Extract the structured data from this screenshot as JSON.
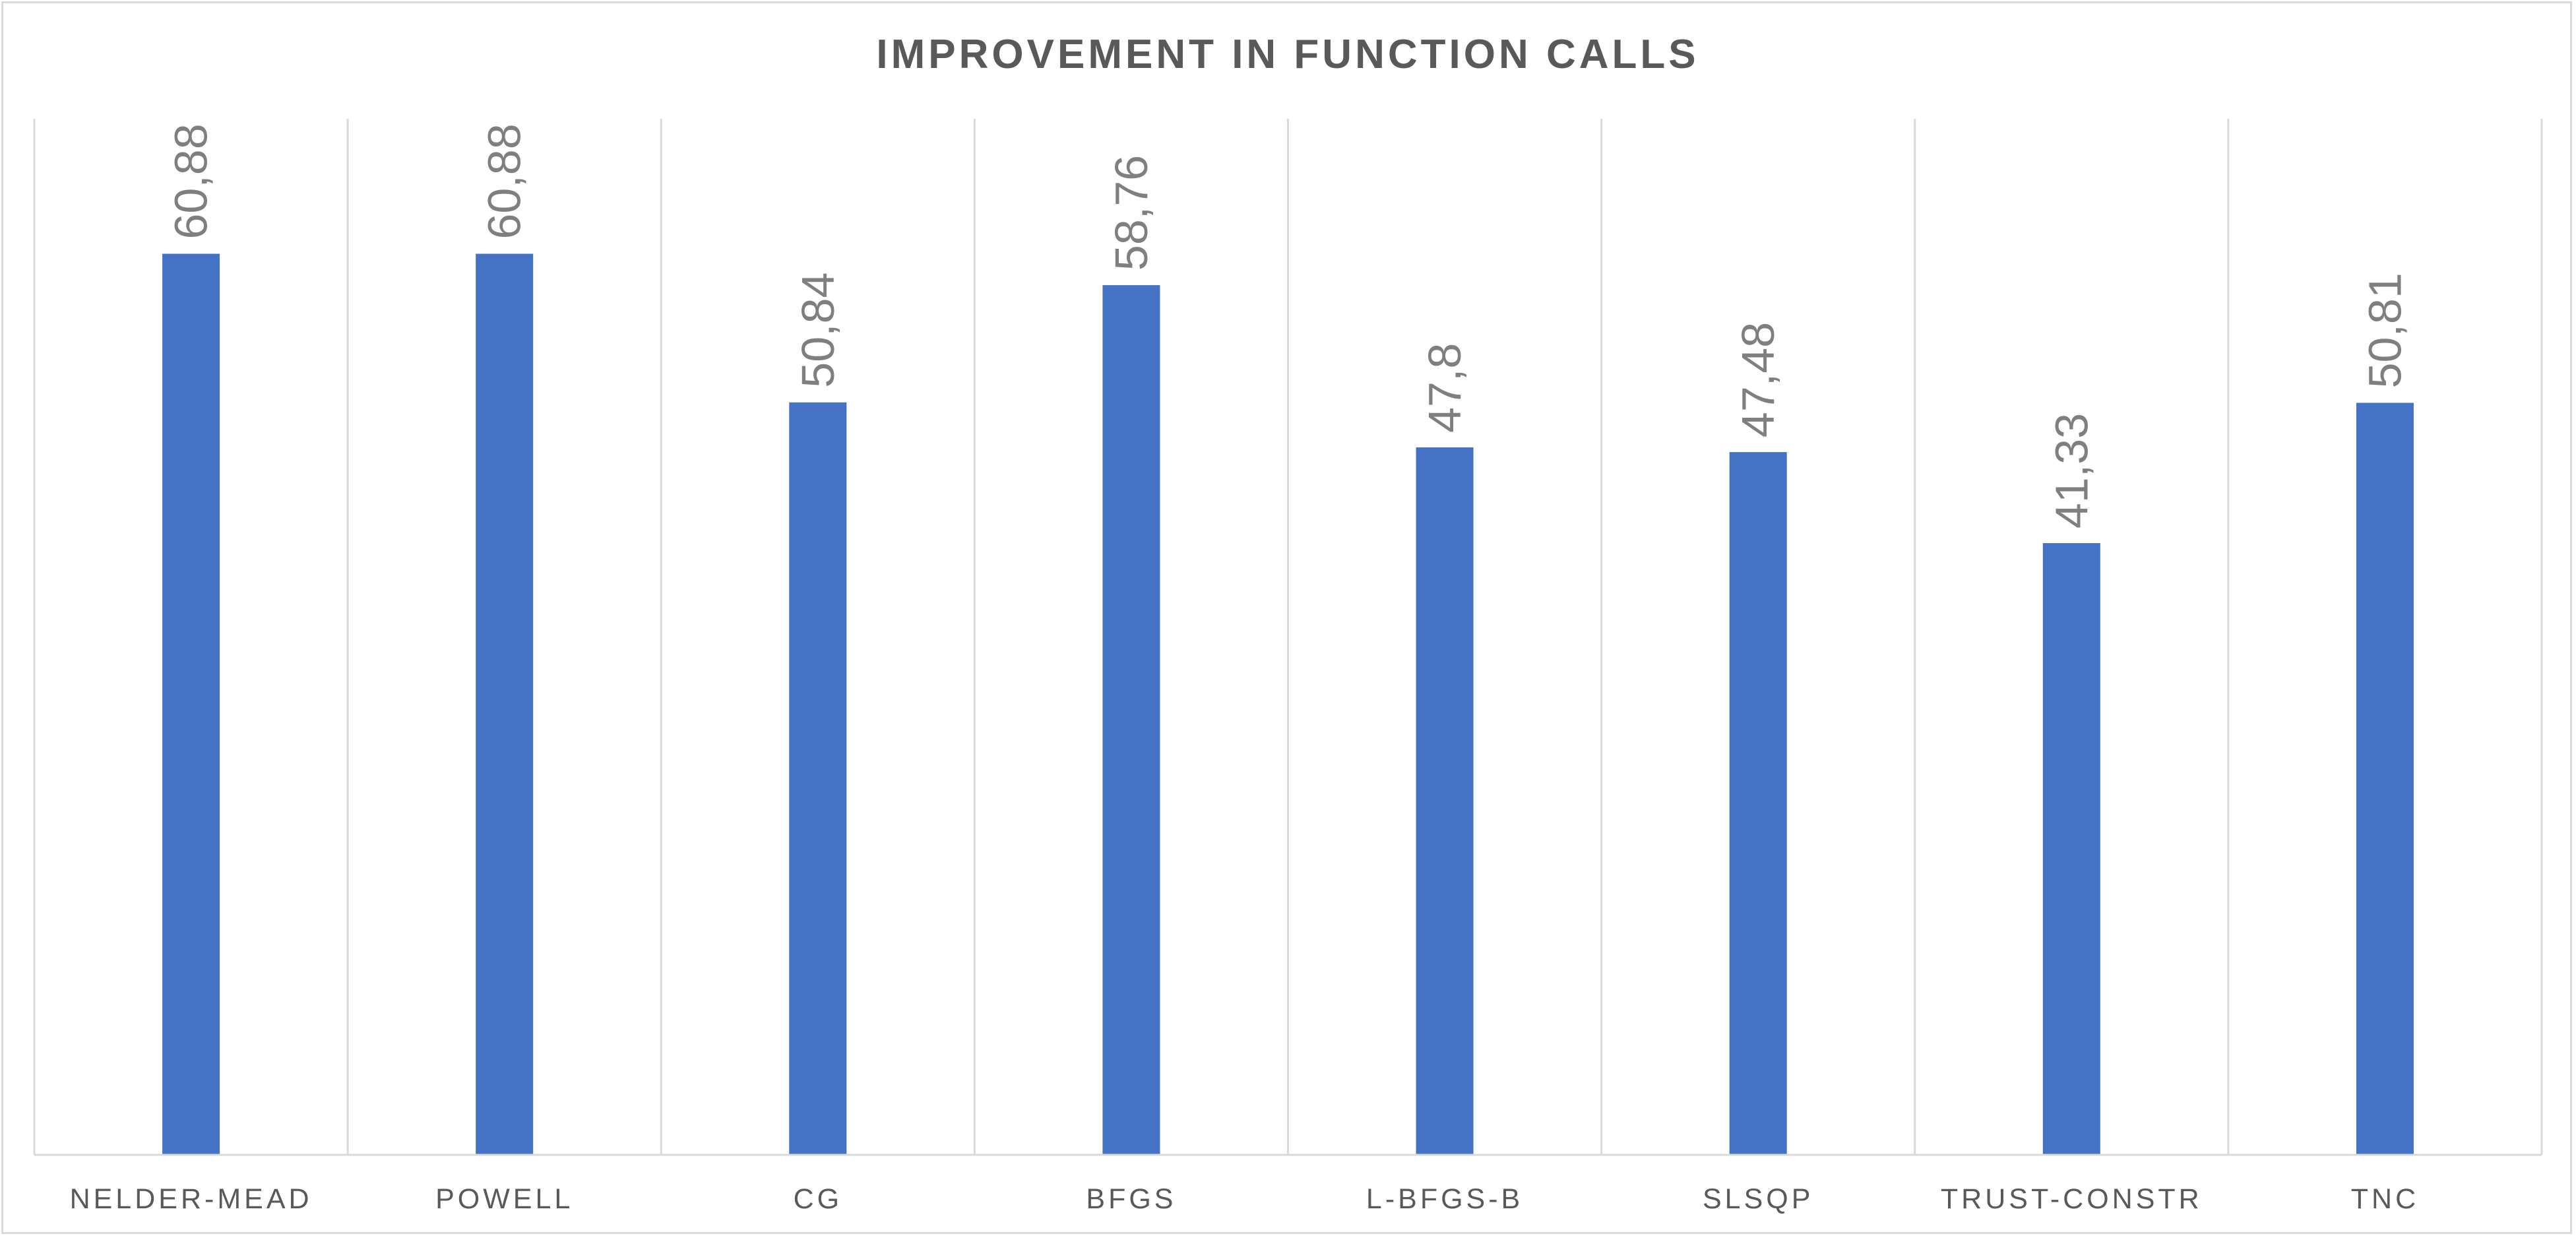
{
  "chart_data": {
    "type": "bar",
    "title": "IMPROVEMENT IN FUNCTION CALLS",
    "categories": [
      "NELDER-MEAD",
      "POWELL",
      "CG",
      "BFGS",
      "L-BFGS-B",
      "SLSQP",
      "TRUST-CONSTR",
      "TNC"
    ],
    "series": [
      {
        "values": [
          60.88,
          60.88,
          50.84,
          58.76,
          47.8,
          47.48,
          41.33,
          50.81
        ],
        "labels": [
          "60,88",
          "60,88",
          "50,84",
          "58,76",
          "47,8",
          "47,48",
          "41,33",
          "50,81"
        ],
        "color": "#4472c4"
      }
    ],
    "ylim": [
      0,
      70
    ],
    "grid": "vertical-category-separators",
    "legend": "none",
    "xlabel": "",
    "ylabel": ""
  }
}
